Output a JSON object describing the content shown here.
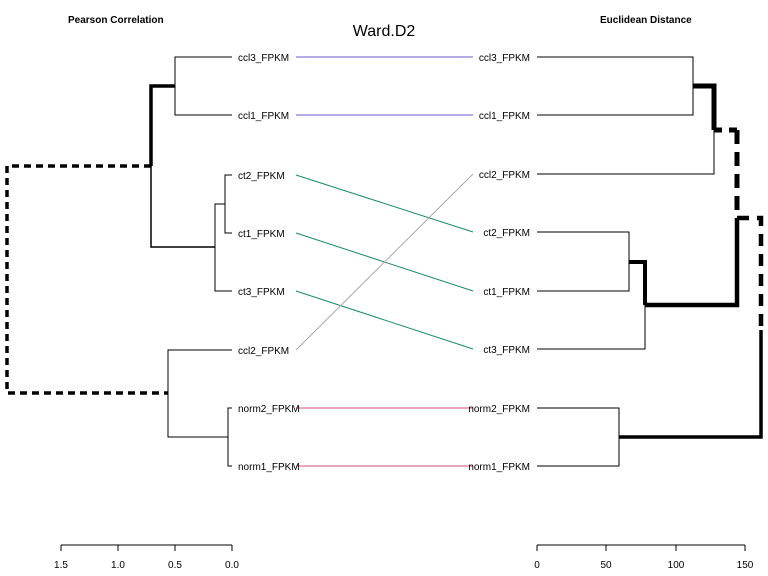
{
  "title": "Ward.D2",
  "left": {
    "header": "Pearson Correlation",
    "labels": [
      "ccl3_FPKM",
      "ccl1_FPKM",
      "ct2_FPKM",
      "ct1_FPKM",
      "ct3_FPKM",
      "ccl2_FPKM",
      "norm2_FPKM",
      "norm1_FPKM"
    ],
    "axis_ticks": [
      "1.5",
      "1.0",
      "0.5",
      "0.0"
    ]
  },
  "right": {
    "header": "Euclidean Distance",
    "labels": [
      "ccl3_FPKM",
      "ccl1_FPKM",
      "ccl2_FPKM",
      "ct2_FPKM",
      "ct1_FPKM",
      "ct3_FPKM",
      "norm2_FPKM",
      "norm1_FPKM"
    ],
    "axis_ticks": [
      "0",
      "50",
      "100",
      "150"
    ]
  },
  "colors": {
    "ccl": "#6a5acd",
    "ct": "#1a8a6a",
    "norm": "#d0507a",
    "ccl2_link": "#aaaaaa"
  }
}
